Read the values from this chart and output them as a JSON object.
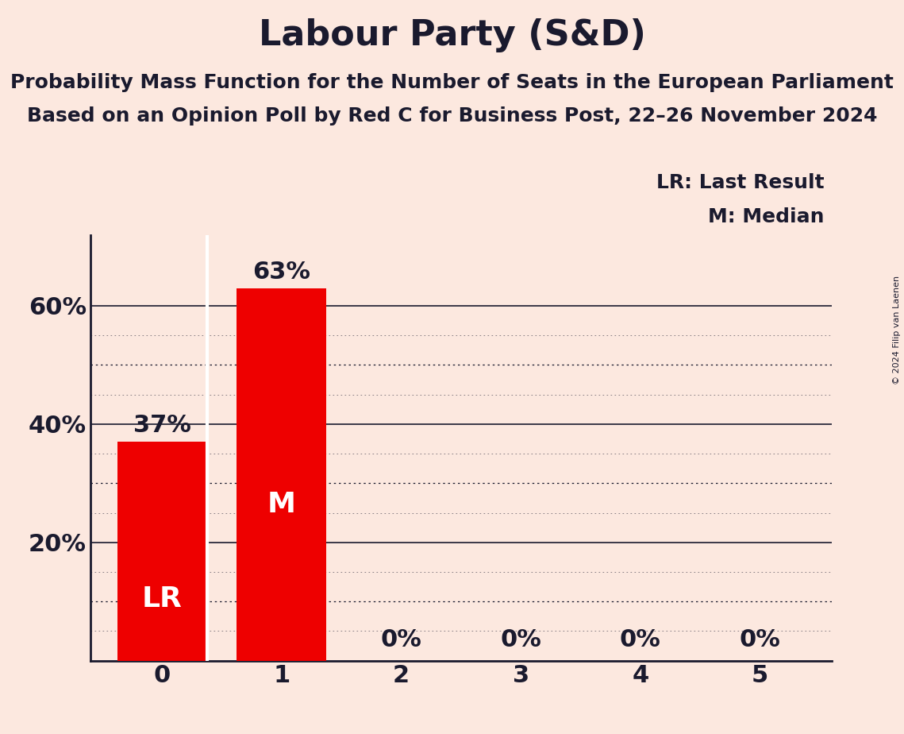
{
  "title": "Labour Party (S&D)",
  "subtitle1": "Probability Mass Function for the Number of Seats in the European Parliament",
  "subtitle2": "Based on an Opinion Poll by Red C for Business Post, 22–26 November 2024",
  "copyright": "© 2024 Filip van Laenen",
  "categories": [
    0,
    1,
    2,
    3,
    4,
    5
  ],
  "values": [
    0.37,
    0.63,
    0.0,
    0.0,
    0.0,
    0.0
  ],
  "bar_color": "#ee0000",
  "bar_width": 0.75,
  "background_color": "#fce8df",
  "text_color": "#1a1a2e",
  "bar_labels": [
    "37%",
    "63%",
    "0%",
    "0%",
    "0%",
    "0%"
  ],
  "last_result_seat": 0,
  "median_seat": 1,
  "ylim": [
    0,
    0.72
  ],
  "yticks": [
    0.0,
    0.2,
    0.4,
    0.6
  ],
  "ytick_labels": [
    "",
    "20%",
    "40%",
    "60%"
  ],
  "solid_hlines": [
    0.2,
    0.4,
    0.6
  ],
  "dotted_hlines": [
    0.1,
    0.3,
    0.5
  ],
  "fine_dotted_hlines": [
    0.05,
    0.15,
    0.25,
    0.35,
    0.45,
    0.55
  ],
  "legend_lr": "LR: Last Result",
  "legend_m": "M: Median",
  "title_fontsize": 32,
  "subtitle_fontsize": 18,
  "tick_fontsize": 22,
  "bar_annotation_fontsize": 22,
  "inside_label_fontsize": 26,
  "legend_fontsize": 18,
  "copyright_fontsize": 8
}
